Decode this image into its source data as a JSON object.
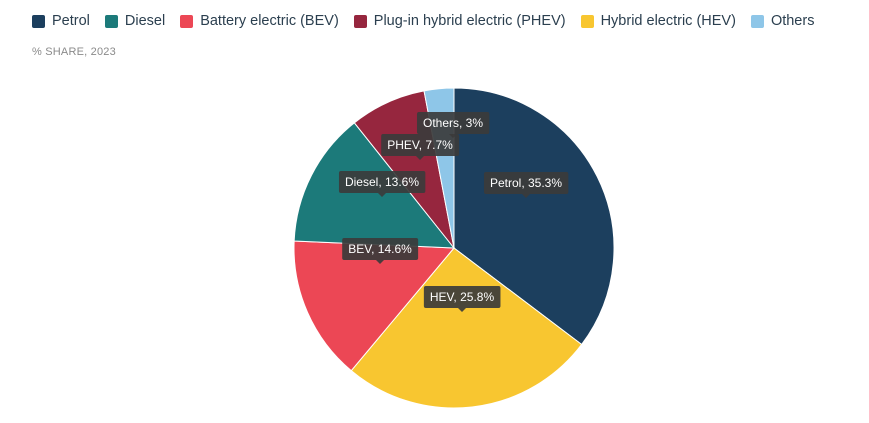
{
  "chart_data": {
    "type": "pie",
    "subtitle": "% SHARE, 2023",
    "legend_position": "top-left",
    "slices": [
      {
        "name": "Petrol",
        "value": 35.3,
        "color": "#1c3f5e",
        "label": "Petrol, 35.3%"
      },
      {
        "name": "Hybrid electric (HEV)",
        "value": 25.8,
        "color": "#f8c630",
        "label": "HEV, 25.8%"
      },
      {
        "name": "Battery electric (BEV)",
        "value": 14.6,
        "color": "#ec4755",
        "label": "BEV, 14.6%"
      },
      {
        "name": "Diesel",
        "value": 13.6,
        "color": "#1c7a7a",
        "label": "Diesel, 13.6%"
      },
      {
        "name": "Plug-in hybrid electric (PHEV)",
        "value": 7.7,
        "color": "#96263e",
        "label": "PHEV, 7.7%"
      },
      {
        "name": "Others",
        "value": 3,
        "color": "#8ec6e8",
        "label": "Others, 3%"
      }
    ],
    "legend": [
      {
        "name": "Petrol",
        "color": "#1c3f5e"
      },
      {
        "name": "Diesel",
        "color": "#1c7a7a"
      },
      {
        "name": "Battery electric (BEV)",
        "color": "#ec4755"
      },
      {
        "name": "Plug-in hybrid electric (PHEV)",
        "color": "#96263e"
      },
      {
        "name": "Hybrid electric (HEV)",
        "color": "#f8c630"
      },
      {
        "name": "Others",
        "color": "#8ec6e8"
      }
    ]
  }
}
